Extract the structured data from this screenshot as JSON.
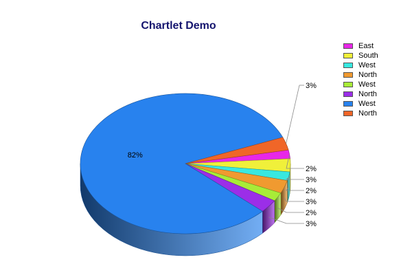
{
  "chart_data": {
    "type": "pie",
    "title": "Chartlet Demo",
    "legend_position": "top-right",
    "slices": [
      {
        "name": "East",
        "value": 2,
        "label": "2%",
        "color": "#e827e8"
      },
      {
        "name": "South",
        "value": 3,
        "label": "3%",
        "color": "#f0f03a"
      },
      {
        "name": "West",
        "value": 2,
        "label": "2%",
        "color": "#38e8e0"
      },
      {
        "name": "North",
        "value": 3,
        "label": "3%",
        "color": "#f09a30"
      },
      {
        "name": "West",
        "value": 2,
        "label": "2%",
        "color": "#a8ec38"
      },
      {
        "name": "North",
        "value": 3,
        "label": "3%",
        "color": "#9b2ee8"
      },
      {
        "name": "West",
        "value": 82,
        "label": "82%",
        "color": "#2882ee"
      },
      {
        "name": "North",
        "value": 3,
        "label": "3%",
        "color": "#f06628"
      }
    ]
  }
}
